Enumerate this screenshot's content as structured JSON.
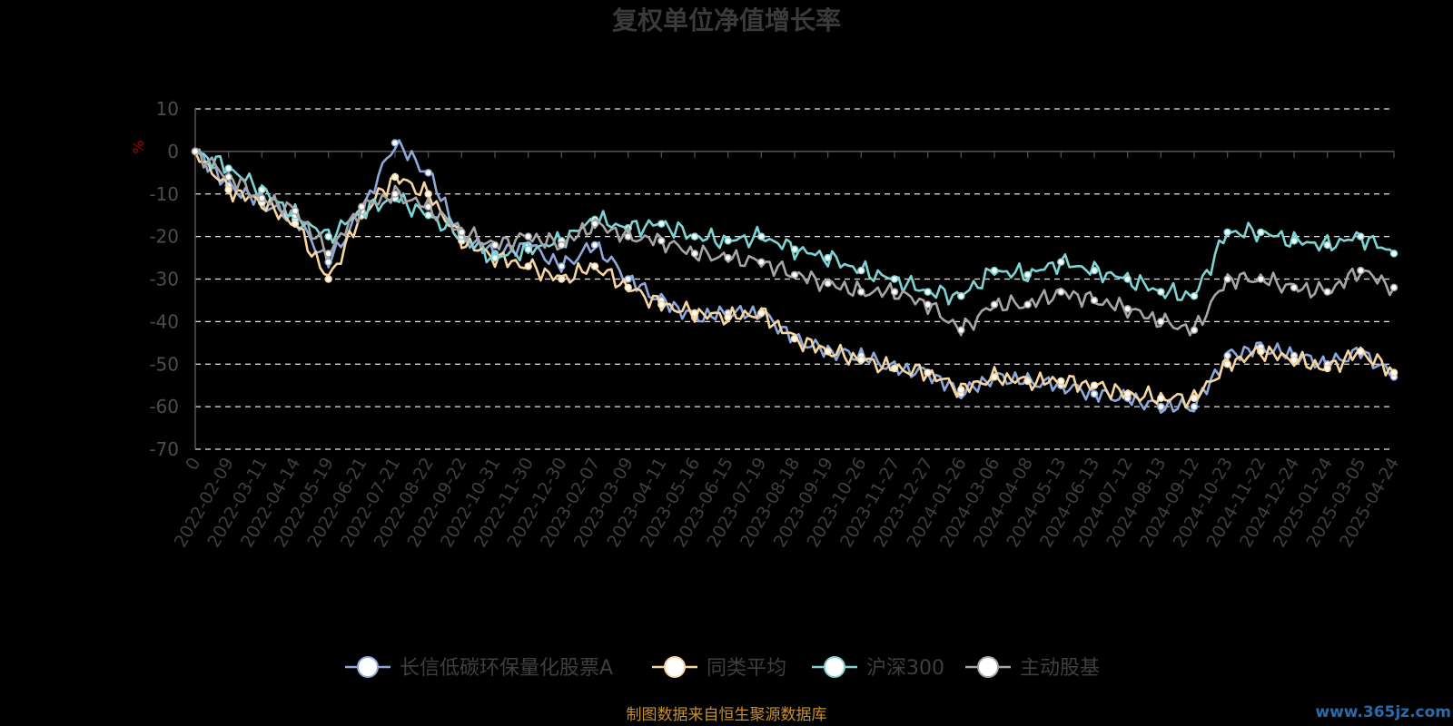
{
  "chart_data": {
    "type": "line",
    "title": "复权单位净值增长率",
    "ylabel": "%",
    "ylim": [
      -70,
      10
    ],
    "yticks": [
      10,
      0,
      -10,
      -20,
      -30,
      -40,
      -50,
      -60,
      -70
    ],
    "grid": true,
    "legend_position": "bottom-center",
    "x_tick_labels": [
      "0",
      "2022-02-09",
      "2022-03-11",
      "2022-04-14",
      "2022-05-19",
      "2022-06-21",
      "2022-07-21",
      "2022-08-22",
      "2022-09-22",
      "2022-10-31",
      "2022-11-30",
      "2022-12-30",
      "2023-02-07",
      "2023-03-09",
      "2023-04-11",
      "2023-05-16",
      "2023-06-15",
      "2023-07-19",
      "2023-08-18",
      "2023-09-19",
      "2023-10-26",
      "2023-11-27",
      "2023-12-27",
      "2024-01-26",
      "2024-03-06",
      "2024-04-08",
      "2024-05-13",
      "2024-06-13",
      "2024-07-12",
      "2024-08-13",
      "2024-09-12",
      "2024-10-23",
      "2024-11-22",
      "2024-12-24",
      "2025-01-24",
      "2025-03-05",
      "2025-04-24"
    ],
    "x": [
      "0",
      "2022-02-09",
      "2022-03-11",
      "2022-04-14",
      "2022-05-19",
      "2022-06-21",
      "2022-07-21",
      "2022-08-22",
      "2022-09-22",
      "2022-10-31",
      "2022-11-30",
      "2022-12-30",
      "2023-02-07",
      "2023-03-09",
      "2023-04-11",
      "2023-05-16",
      "2023-06-15",
      "2023-07-19",
      "2023-08-18",
      "2023-09-19",
      "2023-10-26",
      "2023-11-27",
      "2023-12-27",
      "2024-01-26",
      "2024-03-06",
      "2024-04-08",
      "2024-05-13",
      "2024-06-13",
      "2024-07-12",
      "2024-08-13",
      "2024-09-12",
      "2024-10-23",
      "2024-11-22",
      "2024-12-24",
      "2025-01-24",
      "2025-03-05",
      "2025-04-24"
    ],
    "series": [
      {
        "name": "长信低碳环保量化股票A",
        "color": "#8ea9d8",
        "values": [
          0,
          -8,
          -12,
          -16,
          -26,
          -14,
          2,
          -5,
          -20,
          -24,
          -22,
          -27,
          -22,
          -30,
          -35,
          -39,
          -38,
          -38,
          -44,
          -47,
          -48,
          -51,
          -52,
          -57,
          -53,
          -54,
          -55,
          -57,
          -58,
          -60,
          -60,
          -48,
          -46,
          -48,
          -50,
          -47,
          -53
        ]
      },
      {
        "name": "同类平均",
        "color": "#f5d5a0",
        "values": [
          0,
          -9,
          -12,
          -17,
          -30,
          -15,
          -6,
          -10,
          -21,
          -25,
          -27,
          -30,
          -27,
          -32,
          -36,
          -38,
          -39,
          -38,
          -44,
          -47,
          -49,
          -51,
          -52,
          -56,
          -53,
          -54,
          -54,
          -55,
          -57,
          -58,
          -58,
          -50,
          -47,
          -49,
          -51,
          -47,
          -52
        ]
      },
      {
        "name": "沪深300",
        "color": "#7fd3d3",
        "values": [
          0,
          -4,
          -9,
          -15,
          -20,
          -14,
          -11,
          -15,
          -20,
          -25,
          -23,
          -21,
          -16,
          -18,
          -17,
          -20,
          -21,
          -20,
          -23,
          -25,
          -28,
          -30,
          -33,
          -34,
          -28,
          -29,
          -26,
          -28,
          -30,
          -33,
          -34,
          -19,
          -19,
          -21,
          -22,
          -20,
          -24
        ]
      },
      {
        "name": "主动股基",
        "color": "#a6a6a6",
        "values": [
          0,
          -6,
          -11,
          -14,
          -24,
          -13,
          -10,
          -13,
          -19,
          -22,
          -20,
          -22,
          -17,
          -20,
          -21,
          -24,
          -25,
          -26,
          -29,
          -31,
          -33,
          -33,
          -36,
          -42,
          -36,
          -36,
          -33,
          -35,
          -37,
          -40,
          -42,
          -30,
          -30,
          -32,
          -33,
          -28,
          -32
        ]
      }
    ],
    "source_note": "制图数据来自恒生聚源数据库",
    "watermark": "www.365jz.com"
  }
}
